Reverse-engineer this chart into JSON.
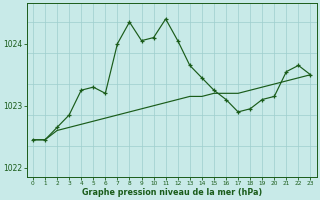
{
  "xlabel": "Graphe pression niveau de la mer (hPa)",
  "bg_color": "#c8eae8",
  "grid_color": "#9ecece",
  "line_color": "#1a5c1a",
  "x_values": [
    0,
    1,
    2,
    3,
    4,
    5,
    6,
    7,
    8,
    9,
    10,
    11,
    12,
    13,
    14,
    15,
    16,
    17,
    18,
    19,
    20,
    21,
    22,
    23
  ],
  "series_spiky": [
    1022.45,
    1022.45,
    1022.65,
    1022.85,
    1023.25,
    1023.3,
    1023.2,
    1024.0,
    1024.35,
    1024.05,
    1024.1,
    1024.4,
    1024.05,
    1023.65,
    1023.45,
    1023.25,
    1023.1,
    1022.9,
    1022.95,
    1023.1,
    1023.15,
    1023.55,
    1023.65,
    1023.5
  ],
  "series_smooth": [
    1022.45,
    1022.45,
    1022.6,
    1022.65,
    1022.7,
    1022.75,
    1022.8,
    1022.85,
    1022.9,
    1022.95,
    1023.0,
    1023.05,
    1023.1,
    1023.15,
    1023.15,
    1023.2,
    1023.2,
    1023.2,
    1023.25,
    1023.3,
    1023.35,
    1023.4,
    1023.45,
    1023.5
  ],
  "ylim_min": 1021.85,
  "ylim_max": 1024.65,
  "yticks": [
    1022,
    1023,
    1024
  ],
  "figsize": [
    3.2,
    2.0
  ],
  "dpi": 100
}
